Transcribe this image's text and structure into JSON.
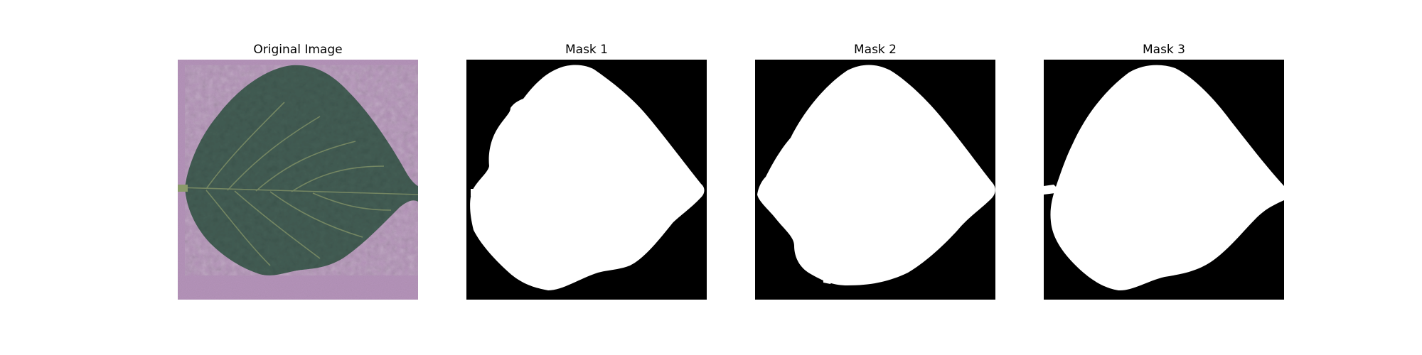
{
  "figure": {
    "panels": [
      {
        "title": "Original Image"
      },
      {
        "title": "Mask 1"
      },
      {
        "title": "Mask 2"
      },
      {
        "title": "Mask 3"
      }
    ]
  },
  "colors": {
    "background": "#ffffff",
    "photo_background": "#b493b9",
    "leaf": "#435d54",
    "leaf_vein": "#8a9a6a",
    "mask_background": "#000000",
    "mask_foreground": "#ffffff"
  }
}
